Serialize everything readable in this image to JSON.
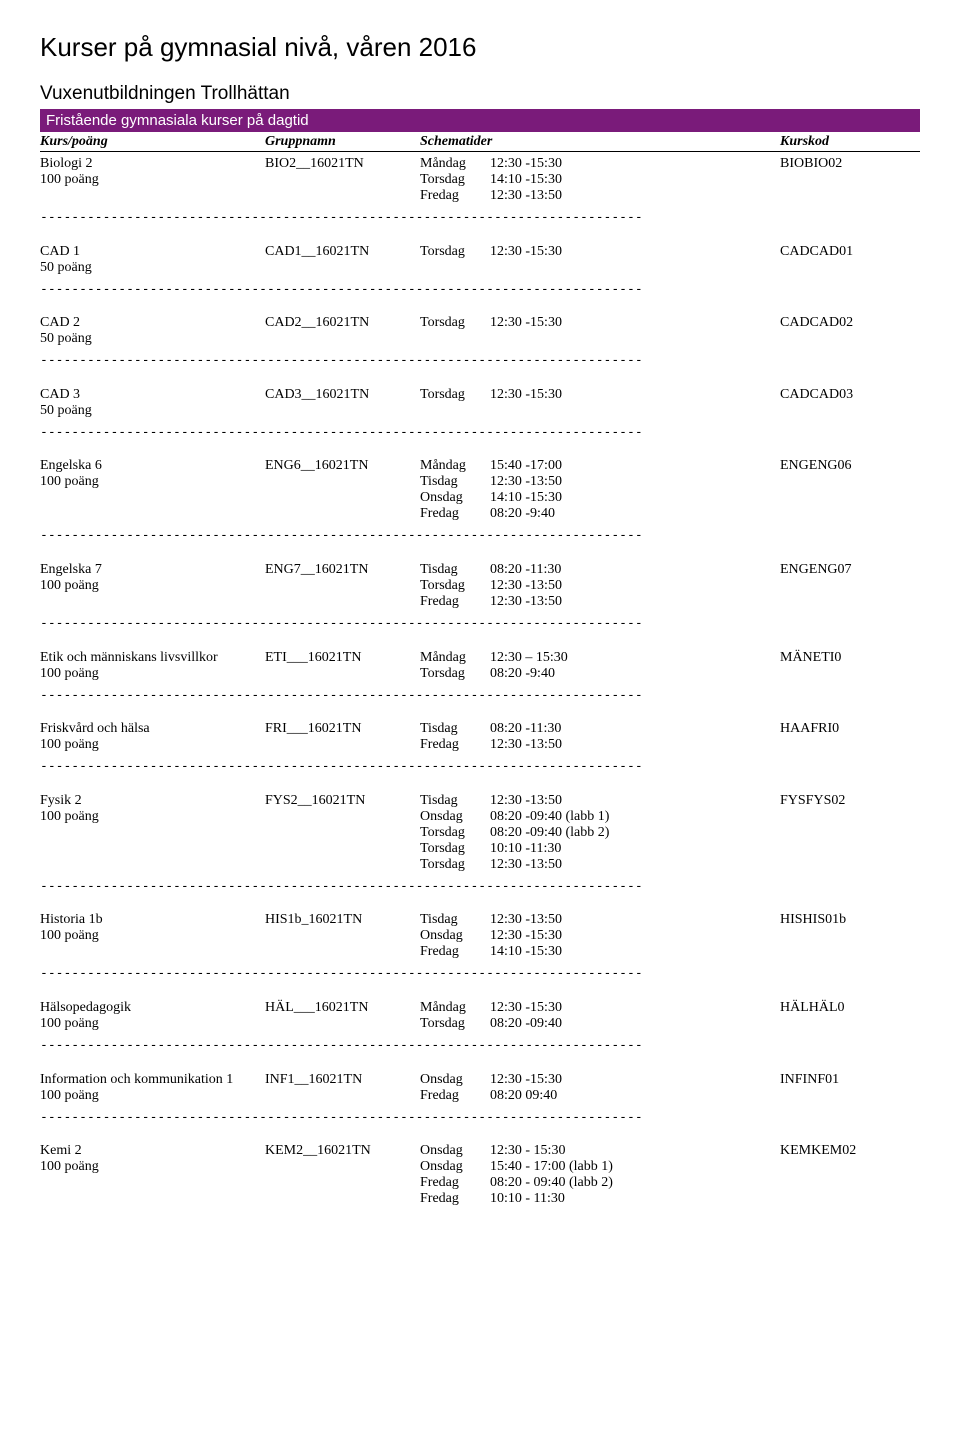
{
  "page_title": "Kurser på gymnasial nivå, våren 2016",
  "subheading": "Vuxenutbildningen Trollhättan",
  "banner": "Fristående gymnasiala kurser på dagtid",
  "columns": {
    "course": "Kurs/poäng",
    "group": "Gruppnamn",
    "schedule": "Schematider",
    "code": "Kurskod"
  },
  "courses": [
    {
      "name": "Biologi 2",
      "points": "100 poäng",
      "group": "BIO2__16021TN",
      "schedule": [
        {
          "day": "Måndag",
          "time": "12:30 -15:30"
        },
        {
          "day": "Torsdag",
          "time": "14:10 -15:30"
        },
        {
          "day": "Fredag",
          "time": "12:30 -13:50"
        }
      ],
      "code": "BIOBIO02"
    },
    {
      "name": "CAD 1",
      "points": "50 poäng",
      "group": "CAD1__16021TN",
      "schedule": [
        {
          "day": "Torsdag",
          "time": "12:30 -15:30"
        }
      ],
      "code": "CADCAD01"
    },
    {
      "name": "CAD 2",
      "points": "50 poäng",
      "group": "CAD2__16021TN",
      "schedule": [
        {
          "day": "Torsdag",
          "time": "12:30 -15:30"
        }
      ],
      "code": "CADCAD02"
    },
    {
      "name": "CAD 3",
      "points": "50 poäng",
      "group": "CAD3__16021TN",
      "schedule": [
        {
          "day": "Torsdag",
          "time": "12:30 -15:30"
        }
      ],
      "code": "CADCAD03"
    },
    {
      "name": "Engelska 6",
      "points": "100 poäng",
      "group": "ENG6__16021TN",
      "schedule": [
        {
          "day": "Måndag",
          "time": "15:40 -17:00"
        },
        {
          "day": "Tisdag",
          "time": "12:30 -13:50"
        },
        {
          "day": "Onsdag",
          "time": "14:10 -15:30"
        },
        {
          "day": "Fredag",
          "time": "08:20 -9:40"
        }
      ],
      "code": "ENGENG06"
    },
    {
      "name": "Engelska 7",
      "points": "100 poäng",
      "group": "ENG7__16021TN",
      "schedule": [
        {
          "day": "Tisdag",
          "time": "08:20 -11:30"
        },
        {
          "day": "Torsdag",
          "time": "12:30 -13:50"
        },
        {
          "day": "Fredag",
          "time": "12:30 -13:50"
        }
      ],
      "code": "ENGENG07"
    },
    {
      "name": "Etik och människans livsvillkor",
      "points": "100 poäng",
      "group": "ETI___16021TN",
      "schedule": [
        {
          "day": "Måndag",
          "time": "12:30 – 15:30"
        },
        {
          "day": "Torsdag",
          "time": "08:20 -9:40"
        }
      ],
      "code": "MÄNETI0"
    },
    {
      "name": "Friskvård och hälsa",
      "points": "100 poäng",
      "group": "FRI___16021TN",
      "schedule": [
        {
          "day": "Tisdag",
          "time": "08:20 -11:30"
        },
        {
          "day": "Fredag",
          "time": "12:30 -13:50"
        }
      ],
      "code": "HAAFRI0"
    },
    {
      "name": "Fysik 2",
      "points": "100 poäng",
      "group": "FYS2__16021TN",
      "schedule": [
        {
          "day": "Tisdag",
          "time": "12:30 -13:50"
        },
        {
          "day": "Onsdag",
          "time": "08:20 -09:40 (labb 1)"
        },
        {
          "day": "Torsdag",
          "time": "08:20 -09:40 (labb 2)"
        },
        {
          "day": "Torsdag",
          "time": "10:10 -11:30"
        },
        {
          "day": "Torsdag",
          "time": "12:30 -13:50"
        }
      ],
      "code": "FYSFYS02"
    },
    {
      "name": "Historia 1b",
      "points": "100 poäng",
      "group": "HIS1b_16021TN",
      "schedule": [
        {
          "day": "Tisdag",
          "time": "12:30 -13:50"
        },
        {
          "day": "Onsdag",
          "time": "12:30 -15:30"
        },
        {
          "day": "Fredag",
          "time": "14:10 -15:30"
        }
      ],
      "code": "HISHIS01b"
    },
    {
      "name": "Hälsopedagogik",
      "points": "100 poäng",
      "group": "HÄL___16021TN",
      "schedule": [
        {
          "day": "Måndag",
          "time": "12:30 -15:30"
        },
        {
          "day": "Torsdag",
          "time": "08:20 -09:40"
        }
      ],
      "code": "HÄLHÄL0"
    },
    {
      "name": "Information och kommunikation 1",
      "points": "100 poäng",
      "group": "INF1__16021TN",
      "schedule": [
        {
          "day": "Onsdag",
          "time": "12:30 -15:30"
        },
        {
          "day": "Fredag",
          "time": "08:20 09:40"
        }
      ],
      "code": "INFINF01"
    },
    {
      "name": "Kemi 2",
      "points": "100 poäng",
      "group": "KEM2__16021TN",
      "schedule": [
        {
          "day": "Onsdag",
          "time": "12:30 - 15:30"
        },
        {
          "day": "Onsdag",
          "time": "15:40 - 17:00 (labb 1)"
        },
        {
          "day": "Fredag",
          "time": "08:20 - 09:40 (labb 2)"
        },
        {
          "day": "Fredag",
          "time": "10:10 - 11:30"
        }
      ],
      "code": "KEMKEM02",
      "no_divider": true
    }
  ]
}
